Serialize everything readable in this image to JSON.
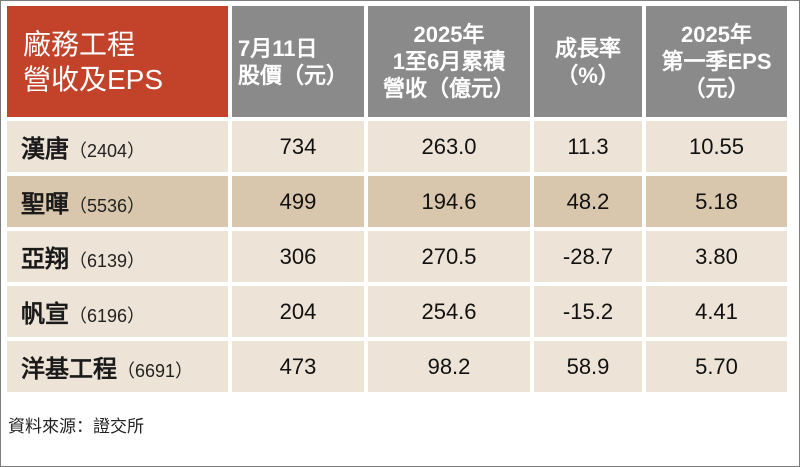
{
  "header": {
    "corner": [
      "廠務工程",
      "營收及EPS"
    ],
    "columns": [
      [
        "7月11日",
        "股價（元）"
      ],
      [
        "2025年",
        "1至6月累積",
        "營收（億元）"
      ],
      [
        "成長率",
        "（%）"
      ],
      [
        "2025年",
        "第一季EPS",
        "（元）"
      ]
    ]
  },
  "rows": [
    {
      "name": "漢唐",
      "code": "（2404）",
      "price": "734",
      "revenue": "263.0",
      "growth": "11.3",
      "eps": "10.55"
    },
    {
      "name": "聖暉",
      "code": "（5536）",
      "price": "499",
      "revenue": "194.6",
      "growth": "48.2",
      "eps": "5.18"
    },
    {
      "name": "亞翔",
      "code": "（6139）",
      "price": "306",
      "revenue": "270.5",
      "growth": "-28.7",
      "eps": "3.80"
    },
    {
      "name": "帆宣",
      "code": "（6196）",
      "price": "204",
      "revenue": "254.6",
      "growth": "-15.2",
      "eps": "4.41"
    },
    {
      "name": "洋基工程",
      "code": "（6691）",
      "price": "473",
      "revenue": "98.2",
      "growth": "58.9",
      "eps": "5.70"
    }
  ],
  "source": "資料來源：證交所",
  "colors": {
    "header_accent": "#c2432a",
    "header_gray": "#8a8a8a",
    "row_bg": "#ede4d7",
    "row_highlight": "#d9c7ad"
  }
}
